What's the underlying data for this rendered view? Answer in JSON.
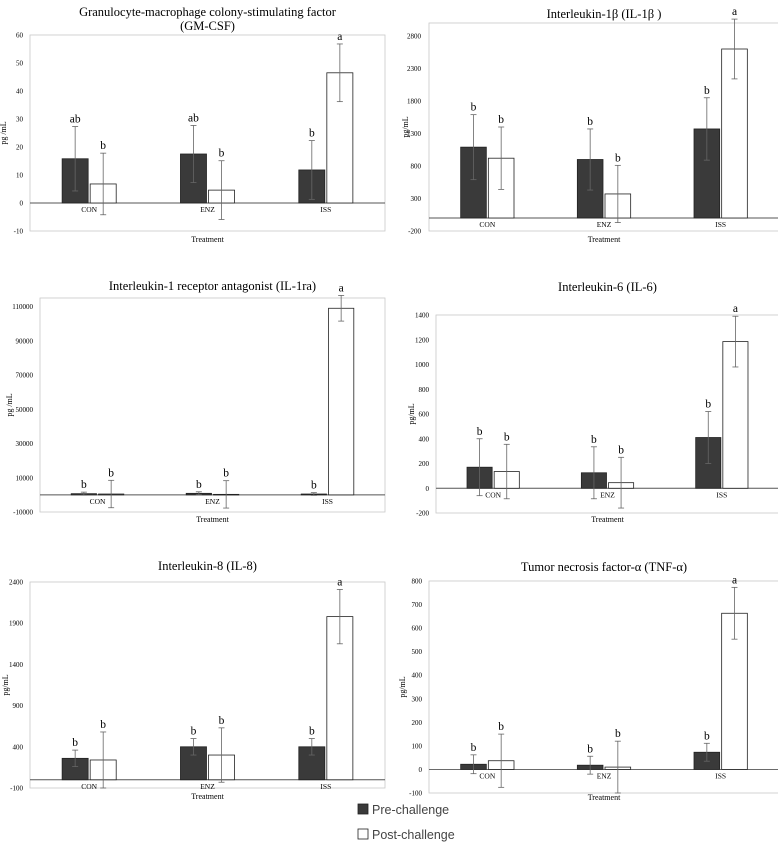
{
  "legend": {
    "items": [
      {
        "label": "Pre-challenge",
        "color": "#3a3a3a"
      },
      {
        "label": "Post-challenge",
        "color": "#ffffff"
      }
    ]
  },
  "chart_data": [
    {
      "type": "bar",
      "title": "Granulocyte-macrophage colony-stimulating factor (GM-CSF)",
      "title_lines": [
        "Granulocyte-macrophage colony-stimulating factor",
        "(GM-CSF)"
      ],
      "xlabel": "Treatment",
      "ylabel": "pg /mL",
      "categories": [
        "CON",
        "ENZ",
        "ISS"
      ],
      "yticks": [
        -10,
        0,
        10,
        20,
        30,
        40,
        50,
        60
      ],
      "ylim": [
        -10,
        60
      ],
      "series": [
        {
          "name": "Pre-challenge",
          "values": [
            15.8,
            17.5,
            11.8
          ],
          "err": [
            11.5,
            10.2,
            10.5
          ],
          "letters": [
            "ab",
            "ab",
            "b"
          ]
        },
        {
          "name": "Post-challenge",
          "values": [
            6.8,
            4.6,
            46.5
          ],
          "err": [
            11.0,
            10.5,
            10.3
          ],
          "letters": [
            "b",
            "b",
            "a"
          ]
        }
      ]
    },
    {
      "type": "bar",
      "title": "Interleukin-1β (IL-1β )",
      "title_lines": [
        "Interleukin-1β (IL-1β )"
      ],
      "xlabel": "Treatment",
      "ylabel": "pg/mL",
      "categories": [
        "CON",
        "ENZ",
        "ISS"
      ],
      "yticks": [
        -200,
        300,
        800,
        1300,
        1800,
        2300,
        2800
      ],
      "ylim": [
        -200,
        3000
      ],
      "series": [
        {
          "name": "Pre-challenge",
          "values": [
            1090,
            900,
            1370
          ],
          "err": [
            500,
            470,
            480
          ],
          "letters": [
            "b",
            "b",
            "b"
          ]
        },
        {
          "name": "Post-challenge",
          "values": [
            920,
            370,
            2600
          ],
          "err": [
            480,
            440,
            460
          ],
          "letters": [
            "b",
            "b",
            "a"
          ]
        }
      ]
    },
    {
      "type": "bar",
      "title": "Interleukin-1 receptor antagonist (IL-1ra)",
      "title_lines": [
        "Interleukin-1 receptor antagonist (IL-1ra)"
      ],
      "xlabel": "Treatment",
      "ylabel": "pg /mL",
      "categories": [
        "CON",
        "ENZ",
        "ISS"
      ],
      "yticks": [
        -10000,
        10000,
        30000,
        50000,
        70000,
        90000,
        110000
      ],
      "ylim": [
        -10000,
        115000
      ],
      "series": [
        {
          "name": "Pre-challenge",
          "values": [
            700,
            900,
            500
          ],
          "err": [
            900,
            900,
            800
          ],
          "letters": [
            "b",
            "b",
            "b"
          ]
        },
        {
          "name": "Post-challenge",
          "values": [
            500,
            300,
            109000
          ],
          "err": [
            8000,
            8000,
            7500
          ],
          "letters": [
            "b",
            "b",
            "a"
          ]
        }
      ]
    },
    {
      "type": "bar",
      "title": "Interleukin-6 (IL-6)",
      "title_lines": [
        "Interleukin-6 (IL-6)"
      ],
      "xlabel": "Treatment",
      "ylabel": "pg/mL",
      "categories": [
        "CON",
        "ENZ",
        "ISS"
      ],
      "yticks": [
        -200,
        0,
        200,
        400,
        600,
        800,
        1000,
        1200,
        1400
      ],
      "ylim": [
        -200,
        1400
      ],
      "series": [
        {
          "name": "Pre-challenge",
          "values": [
            170,
            125,
            410
          ],
          "err": [
            230,
            210,
            210
          ],
          "letters": [
            "b",
            "b",
            "b"
          ]
        },
        {
          "name": "Post-challenge",
          "values": [
            135,
            45,
            1185
          ],
          "err": [
            220,
            205,
            205
          ],
          "letters": [
            "b",
            "b",
            "a"
          ]
        }
      ]
    },
    {
      "type": "bar",
      "title": "Interleukin-8 (IL-8)",
      "title_lines": [
        "Interleukin-8 (IL-8)"
      ],
      "xlabel": "Treatment",
      "ylabel": "pg/mL",
      "categories": [
        "CON",
        "ENZ",
        "ISS"
      ],
      "yticks": [
        -100,
        400,
        900,
        1400,
        1900,
        2400
      ],
      "ylim": [
        -100,
        2400
      ],
      "series": [
        {
          "name": "Pre-challenge",
          "values": [
            260,
            400,
            400
          ],
          "err": [
            100,
            100,
            100
          ],
          "letters": [
            "b",
            "b",
            "b"
          ]
        },
        {
          "name": "Post-challenge",
          "values": [
            240,
            300,
            1980
          ],
          "err": [
            340,
            330,
            330
          ],
          "letters": [
            "b",
            "b",
            "a"
          ]
        }
      ]
    },
    {
      "type": "bar",
      "title": "Tumor necrosis factor-α (TNF-α)",
      "title_lines": [
        "Tumor necrosis factor-α (TNF-α)"
      ],
      "xlabel": "Treatment",
      "ylabel": "pg/mL",
      "categories": [
        "CON",
        "ENZ",
        "ISS"
      ],
      "yticks": [
        -100,
        0,
        100,
        200,
        300,
        400,
        500,
        600,
        700,
        800
      ],
      "ylim": [
        -100,
        800
      ],
      "series": [
        {
          "name": "Pre-challenge",
          "values": [
            22,
            18,
            73
          ],
          "err": [
            40,
            38,
            38
          ],
          "letters": [
            "b",
            "b",
            "b"
          ]
        },
        {
          "name": "Post-challenge",
          "values": [
            37,
            10,
            663
          ],
          "err": [
            113,
            110,
            110
          ],
          "letters": [
            "b",
            "b",
            "a"
          ]
        }
      ]
    }
  ]
}
